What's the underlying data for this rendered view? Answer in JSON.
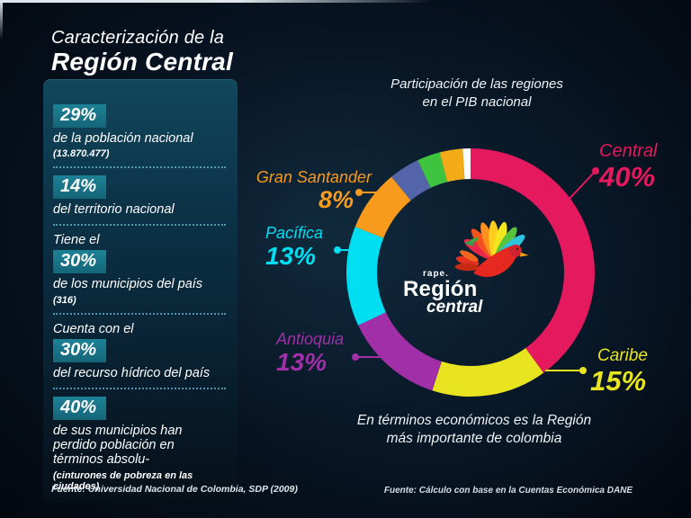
{
  "header": {
    "title_line1": "Caracterización de la",
    "title_line2": "Región Central"
  },
  "stats_panel": {
    "items": [
      {
        "percent": "29%",
        "description": "de la población nacional",
        "note": "(13.870.477)"
      },
      {
        "percent": "14%",
        "description": "del territorio nacional"
      },
      {
        "prefix": "Tiene el",
        "percent": "30%",
        "description": "de los municipios del país",
        "note": "(316)"
      },
      {
        "prefix": "Cuenta con el",
        "percent": "30%",
        "description": "del recurso hídrico del país"
      },
      {
        "percent": "40%",
        "description": "de sus municipios han perdido población en términos absolu-",
        "note": "(cinturones de pobreza en las ciudades)"
      }
    ],
    "source": "Fuente: Universidad Nacional de Colombia, SDP (2009)"
  },
  "logo": {
    "brand_top": "rape.",
    "brand_line1": "Región",
    "brand_line2": "central"
  },
  "chart_caption": {
    "line1": "En términos económicos es la Región",
    "line2": "más importante de colombia",
    "source": "Fuente: Cálculo con base en la Cuentas Económica DANE"
  },
  "chart_data": {
    "type": "pie",
    "variant": "donut",
    "title_line1": "Participación de las regiones",
    "title_line2": "en el PIB nacional",
    "start_angle_deg": 0,
    "direction": "clockwise",
    "unit": "%",
    "segments": [
      {
        "label": "Central",
        "value": 40,
        "display": "40%",
        "color": "#e5195e"
      },
      {
        "label": "Caribe",
        "value": 15,
        "display": "15%",
        "color": "#e8e41f"
      },
      {
        "label": "Antioquia",
        "value": 13,
        "display": "13%",
        "color": "#a02fa8"
      },
      {
        "label": "Pacífica",
        "value": 13,
        "display": "13%",
        "color": "#00dff2"
      },
      {
        "label": "Gran Santander",
        "value": 8,
        "display": "8%",
        "color": "#f89a1c"
      },
      {
        "label": "",
        "value": 4,
        "display": "",
        "color": "#5464a8"
      },
      {
        "label": "",
        "value": 3,
        "display": "",
        "color": "#3fc43f"
      },
      {
        "label": "",
        "value": 3,
        "display": "",
        "color": "#f3ac17"
      },
      {
        "label": "",
        "value": 1,
        "display": "",
        "color": "#ffffff"
      }
    ]
  }
}
